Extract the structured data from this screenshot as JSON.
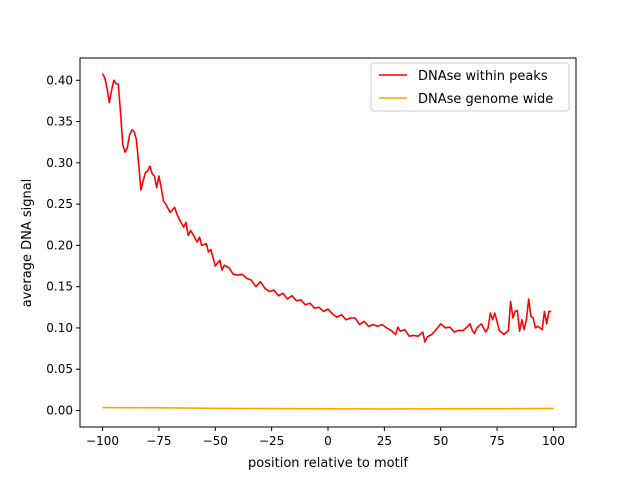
{
  "chart_data": {
    "type": "line",
    "title": "",
    "xlabel": "position relative to motif",
    "ylabel": "average DNA signal",
    "xlim": [
      -110,
      110
    ],
    "ylim": [
      -0.02,
      0.427
    ],
    "xticks": [
      -100,
      -75,
      -50,
      -25,
      0,
      25,
      50,
      75,
      100
    ],
    "yticks": [
      0.0,
      0.05,
      0.1,
      0.15,
      0.2,
      0.25,
      0.3,
      0.35,
      0.4
    ],
    "ytick_labels": [
      "0.00",
      "0.05",
      "0.10",
      "0.15",
      "0.20",
      "0.25",
      "0.30",
      "0.35",
      "0.40"
    ],
    "grid": false,
    "legend": "top-right",
    "series": [
      {
        "name": "DNAse within peaks",
        "color": "#ff0000",
        "x": [
          -100,
          -99,
          -98,
          -97,
          -96,
          -95,
          -94,
          -93,
          -92,
          -91,
          -90,
          -89,
          -88,
          -87,
          -86,
          -85,
          -84,
          -83,
          -82,
          -81,
          -80,
          -79,
          -78,
          -77,
          -76,
          -75,
          -74,
          -73,
          -72,
          -70,
          -68,
          -67,
          -66,
          -64,
          -63,
          -62,
          -61,
          -60,
          -58,
          -57,
          -56,
          -54,
          -53,
          -52,
          -50,
          -48,
          -47,
          -46,
          -44,
          -42,
          -40,
          -38,
          -36,
          -34,
          -32,
          -30,
          -28,
          -26,
          -24,
          -22,
          -20,
          -18,
          -16,
          -14,
          -12,
          -10,
          -8,
          -6,
          -4,
          -2,
          0,
          2,
          4,
          6,
          8,
          10,
          12,
          14,
          16,
          18,
          20,
          22,
          24,
          26,
          28,
          30,
          31,
          32,
          34,
          36,
          38,
          40,
          42,
          43,
          44,
          46,
          48,
          50,
          52,
          54,
          56,
          58,
          60,
          62,
          63,
          64,
          65,
          66,
          68,
          70,
          71,
          72,
          73,
          74,
          76,
          78,
          80,
          81,
          82,
          83,
          84,
          85,
          86,
          87,
          88,
          89,
          90,
          91,
          92,
          93,
          94,
          95,
          96,
          97,
          98,
          99
        ],
        "y": [
          0.408,
          0.403,
          0.39,
          0.373,
          0.388,
          0.4,
          0.396,
          0.395,
          0.36,
          0.322,
          0.313,
          0.318,
          0.334,
          0.34,
          0.338,
          0.328,
          0.3,
          0.267,
          0.278,
          0.288,
          0.29,
          0.296,
          0.287,
          0.284,
          0.27,
          0.284,
          0.27,
          0.254,
          0.25,
          0.24,
          0.246,
          0.238,
          0.232,
          0.222,
          0.228,
          0.212,
          0.218,
          0.214,
          0.204,
          0.21,
          0.2,
          0.202,
          0.192,
          0.195,
          0.175,
          0.182,
          0.17,
          0.176,
          0.173,
          0.165,
          0.164,
          0.165,
          0.16,
          0.158,
          0.15,
          0.156,
          0.148,
          0.144,
          0.146,
          0.139,
          0.142,
          0.135,
          0.139,
          0.133,
          0.134,
          0.128,
          0.13,
          0.124,
          0.125,
          0.12,
          0.123,
          0.117,
          0.113,
          0.116,
          0.11,
          0.112,
          0.112,
          0.104,
          0.108,
          0.102,
          0.104,
          0.102,
          0.104,
          0.1,
          0.097,
          0.092,
          0.101,
          0.096,
          0.098,
          0.09,
          0.091,
          0.09,
          0.095,
          0.083,
          0.089,
          0.092,
          0.098,
          0.105,
          0.1,
          0.101,
          0.095,
          0.097,
          0.097,
          0.102,
          0.105,
          0.097,
          0.093,
          0.1,
          0.105,
          0.095,
          0.1,
          0.118,
          0.11,
          0.118,
          0.097,
          0.092,
          0.097,
          0.132,
          0.112,
          0.12,
          0.121,
          0.096,
          0.11,
          0.098,
          0.11,
          0.135,
          0.114,
          0.112,
          0.1,
          0.102,
          0.1,
          0.098,
          0.12,
          0.105,
          0.12,
          0.12
        ]
      },
      {
        "name": "DNAse genome wide",
        "color": "#ffa500",
        "x": [
          -100,
          -75,
          -50,
          -25,
          0,
          25,
          50,
          75,
          100
        ],
        "y": [
          0.0035,
          0.0032,
          0.0027,
          0.0023,
          0.002,
          0.0019,
          0.002,
          0.0022,
          0.0025
        ]
      }
    ]
  }
}
